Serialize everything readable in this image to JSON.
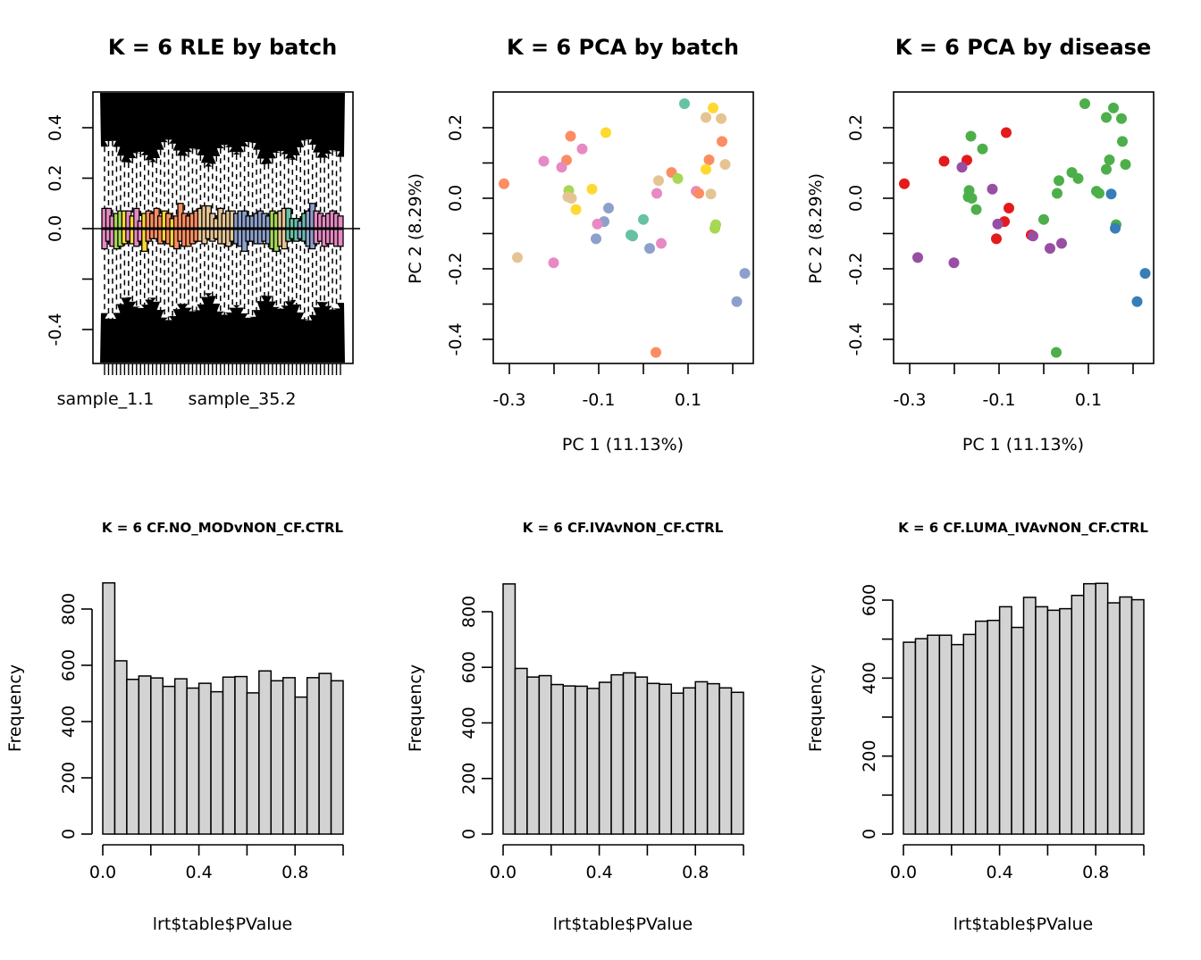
{
  "chart_data": [
    {
      "id": "rle",
      "type": "boxplot",
      "title": "K = 6 RLE by batch",
      "xlabel": "",
      "ylabel": "",
      "ylim": [
        -0.53,
        0.53
      ],
      "yticks": [
        -0.4,
        -0.2,
        0.0,
        0.2,
        0.4
      ],
      "ytick_labels": [
        "-0.4",
        "",
        "0.0",
        "0.2",
        "0.4"
      ],
      "xtick_labels": [
        "sample_1.1",
        "sample_35.2"
      ],
      "n_samples": 60,
      "reference_line": 0,
      "batch_colors": [
        "#E78AC3",
        "#A6D854",
        "#FFD92F",
        "#E78AC3",
        "#FC8D62",
        "#FFD92F",
        "#FC8D62",
        "#E5C494",
        "#8DA0CB",
        "#A6D854",
        "#E5C494",
        "#66C2A5",
        "#8DA0CB",
        "#66C2A5",
        "#8DA0CB",
        "#E78AC3"
      ],
      "box_colors": [
        "#E78AC3",
        "#E78AC3",
        "#E78AC3",
        "#A6D854",
        "#A6D854",
        "#FFD92F",
        "#E78AC3",
        "#FFD92F",
        "#E78AC3",
        "#E78AC3",
        "#FFD92F",
        "#FC8D62",
        "#FC8D62",
        "#FC8D62",
        "#FC8D62",
        "#FFD92F",
        "#FC8D62",
        "#FFD92F",
        "#FC8D62",
        "#FC8D62",
        "#FC8D62",
        "#FC8D62",
        "#FC8D62",
        "#FC8D62",
        "#E5C494",
        "#E5C494",
        "#E5C494",
        "#E5C494",
        "#E5C494",
        "#E5C494",
        "#E5C494",
        "#E5C494",
        "#E5C494",
        "#8DA0CB",
        "#8DA0CB",
        "#8DA0CB",
        "#8DA0CB",
        "#8DA0CB",
        "#8DA0CB",
        "#8DA0CB",
        "#8DA0CB",
        "#8DA0CB",
        "#A6D854",
        "#A6D854",
        "#E5C494",
        "#E5C494",
        "#66C2A5",
        "#66C2A5",
        "#66C2A5",
        "#8DA0CB",
        "#66C2A5",
        "#8DA0CB",
        "#8DA0CB",
        "#E78AC3",
        "#E78AC3",
        "#E78AC3",
        "#E78AC3",
        "#E78AC3",
        "#E78AC3",
        "#E78AC3"
      ],
      "box_q3": [
        0.08,
        0.08,
        0.05,
        0.06,
        0.07,
        0.07,
        0.07,
        0.05,
        0.08,
        0.03,
        0.06,
        0.07,
        0.06,
        0.08,
        0.05,
        0.07,
        0.06,
        0.04,
        0.05,
        0.1,
        0.06,
        0.05,
        0.06,
        0.07,
        0.08,
        0.09,
        0.09,
        0.06,
        0.04,
        0.08,
        0.06,
        0.07,
        0.07,
        0.06,
        0.07,
        0.07,
        0.05,
        0.05,
        0.06,
        0.07,
        0.06,
        0.05,
        0.07,
        0.06,
        0.07,
        0.08,
        0.08,
        0.04,
        0.04,
        0.03,
        0.06,
        0.07,
        0.1,
        0.07,
        0.06,
        0.05,
        0.06,
        0.07,
        0.06,
        0.05
      ],
      "box_q1": [
        -0.08,
        -0.05,
        -0.07,
        -0.08,
        -0.07,
        -0.06,
        -0.05,
        -0.06,
        -0.07,
        -0.05,
        -0.09,
        -0.05,
        -0.04,
        -0.04,
        -0.06,
        -0.05,
        -0.06,
        -0.07,
        -0.08,
        -0.05,
        -0.07,
        -0.07,
        -0.06,
        -0.05,
        -0.05,
        -0.06,
        -0.04,
        -0.05,
        -0.04,
        -0.06,
        -0.06,
        -0.07,
        -0.05,
        -0.06,
        -0.07,
        -0.09,
        -0.05,
        -0.05,
        -0.06,
        -0.06,
        -0.05,
        -0.06,
        -0.08,
        -0.09,
        -0.07,
        -0.08,
        -0.05,
        -0.04,
        -0.05,
        -0.04,
        -0.05,
        -0.07,
        -0.08,
        -0.06,
        -0.05,
        -0.07,
        -0.06,
        -0.06,
        -0.07,
        -0.07
      ],
      "whisker_upper": 0.27,
      "whisker_lower": -0.27
    },
    {
      "id": "pca_batch",
      "type": "scatter",
      "title": "K = 6 PCA by batch",
      "xlabel": "PC 1 (11.13%)",
      "ylabel": "PC 2 (8.29%)",
      "xlim": [
        -0.32,
        0.25
      ],
      "ylim": [
        -0.465,
        0.295
      ],
      "xticks": [
        -0.3,
        -0.2,
        -0.1,
        0.0,
        0.1,
        0.2
      ],
      "xtick_labels": [
        "-0.3",
        "",
        "-0.1",
        "",
        "0.1",
        ""
      ],
      "yticks": [
        -0.4,
        -0.3,
        -0.2,
        -0.1,
        0.0,
        0.1,
        0.2
      ],
      "ytick_labels": [
        "-0.4",
        "",
        "-0.2",
        "",
        "0.0",
        "",
        "0.2"
      ],
      "points": [
        {
          "x": 0.092,
          "y": 0.268,
          "color": "#66C2A5"
        },
        {
          "x": 0.156,
          "y": 0.256,
          "color": "#FFD92F"
        },
        {
          "x": 0.14,
          "y": 0.229,
          "color": "#E5C494"
        },
        {
          "x": 0.174,
          "y": 0.226,
          "color": "#E5C494"
        },
        {
          "x": -0.163,
          "y": 0.176,
          "color": "#FC8D62"
        },
        {
          "x": -0.084,
          "y": 0.186,
          "color": "#FFD92F"
        },
        {
          "x": -0.137,
          "y": 0.14,
          "color": "#E78AC3"
        },
        {
          "x": 0.176,
          "y": 0.161,
          "color": "#FC8D62"
        },
        {
          "x": -0.223,
          "y": 0.105,
          "color": "#E78AC3"
        },
        {
          "x": -0.172,
          "y": 0.108,
          "color": "#FC8D62"
        },
        {
          "x": -0.183,
          "y": 0.088,
          "color": "#E78AC3"
        },
        {
          "x": 0.147,
          "y": 0.109,
          "color": "#FC8D62"
        },
        {
          "x": 0.183,
          "y": 0.096,
          "color": "#E5C494"
        },
        {
          "x": 0.14,
          "y": 0.082,
          "color": "#FFD92F"
        },
        {
          "x": 0.063,
          "y": 0.073,
          "color": "#FC8D62"
        },
        {
          "x": 0.077,
          "y": 0.056,
          "color": "#A6D854"
        },
        {
          "x": 0.034,
          "y": 0.05,
          "color": "#E5C494"
        },
        {
          "x": -0.312,
          "y": 0.041,
          "color": "#FC8D62"
        },
        {
          "x": -0.167,
          "y": 0.022,
          "color": "#A6D854"
        },
        {
          "x": -0.115,
          "y": 0.026,
          "color": "#FFD92F"
        },
        {
          "x": 0.03,
          "y": 0.014,
          "color": "#E78AC3"
        },
        {
          "x": 0.118,
          "y": 0.02,
          "color": "#E78AC3"
        },
        {
          "x": 0.124,
          "y": 0.014,
          "color": "#FC8D62"
        },
        {
          "x": 0.151,
          "y": 0.012,
          "color": "#E5C494"
        },
        {
          "x": -0.169,
          "y": 0.004,
          "color": "#E5C494"
        },
        {
          "x": -0.161,
          "y": 0.0,
          "color": "#E5C494"
        },
        {
          "x": -0.151,
          "y": -0.032,
          "color": "#FFD92F"
        },
        {
          "x": -0.078,
          "y": -0.028,
          "color": "#8DA0CB"
        },
        {
          "x": -0.088,
          "y": -0.066,
          "color": "#8DA0CB"
        },
        {
          "x": -0.103,
          "y": -0.073,
          "color": "#E78AC3"
        },
        {
          "x": 0.0,
          "y": -0.06,
          "color": "#66C2A5"
        },
        {
          "x": -0.028,
          "y": -0.104,
          "color": "#66C2A5"
        },
        {
          "x": -0.024,
          "y": -0.107,
          "color": "#66C2A5"
        },
        {
          "x": -0.106,
          "y": -0.115,
          "color": "#8DA0CB"
        },
        {
          "x": 0.04,
          "y": -0.128,
          "color": "#E78AC3"
        },
        {
          "x": 0.014,
          "y": -0.142,
          "color": "#8DA0CB"
        },
        {
          "x": 0.162,
          "y": -0.075,
          "color": "#A6D854"
        },
        {
          "x": 0.16,
          "y": -0.085,
          "color": "#A6D854"
        },
        {
          "x": -0.282,
          "y": -0.168,
          "color": "#E5C494"
        },
        {
          "x": -0.201,
          "y": -0.183,
          "color": "#E78AC3"
        },
        {
          "x": 0.227,
          "y": -0.213,
          "color": "#8DA0CB"
        },
        {
          "x": 0.209,
          "y": -0.293,
          "color": "#8DA0CB"
        },
        {
          "x": 0.028,
          "y": -0.437,
          "color": "#FC8D62"
        }
      ]
    },
    {
      "id": "pca_disease",
      "type": "scatter",
      "title": "K = 6 PCA by disease",
      "xlabel": "PC 1 (11.13%)",
      "ylabel": "PC 2 (8.29%)",
      "xlim": [
        -0.32,
        0.25
      ],
      "ylim": [
        -0.465,
        0.295
      ],
      "xticks": [
        -0.3,
        -0.2,
        -0.1,
        0.0,
        0.1,
        0.2
      ],
      "xtick_labels": [
        "-0.3",
        "",
        "-0.1",
        "",
        "0.1",
        ""
      ],
      "yticks": [
        -0.4,
        -0.3,
        -0.2,
        -0.1,
        0.0,
        0.1,
        0.2
      ],
      "ytick_labels": [
        "-0.4",
        "",
        "-0.2",
        "",
        "0.0",
        "",
        "0.2"
      ],
      "legend": [],
      "disease_colors": {
        "red": "#E41A1C",
        "green": "#4DAF4A",
        "purple": "#984EA3",
        "blue": "#377EB8"
      },
      "points": [
        {
          "x": 0.092,
          "y": 0.268,
          "color": "#4DAF4A"
        },
        {
          "x": 0.156,
          "y": 0.256,
          "color": "#4DAF4A"
        },
        {
          "x": 0.14,
          "y": 0.229,
          "color": "#4DAF4A"
        },
        {
          "x": 0.174,
          "y": 0.226,
          "color": "#4DAF4A"
        },
        {
          "x": -0.163,
          "y": 0.176,
          "color": "#4DAF4A"
        },
        {
          "x": -0.084,
          "y": 0.186,
          "color": "#E41A1C"
        },
        {
          "x": -0.137,
          "y": 0.14,
          "color": "#4DAF4A"
        },
        {
          "x": 0.176,
          "y": 0.161,
          "color": "#4DAF4A"
        },
        {
          "x": -0.223,
          "y": 0.105,
          "color": "#E41A1C"
        },
        {
          "x": -0.172,
          "y": 0.108,
          "color": "#E41A1C"
        },
        {
          "x": -0.183,
          "y": 0.088,
          "color": "#984EA3"
        },
        {
          "x": 0.147,
          "y": 0.109,
          "color": "#4DAF4A"
        },
        {
          "x": 0.183,
          "y": 0.096,
          "color": "#4DAF4A"
        },
        {
          "x": 0.14,
          "y": 0.082,
          "color": "#4DAF4A"
        },
        {
          "x": 0.063,
          "y": 0.073,
          "color": "#4DAF4A"
        },
        {
          "x": 0.077,
          "y": 0.056,
          "color": "#4DAF4A"
        },
        {
          "x": 0.034,
          "y": 0.05,
          "color": "#4DAF4A"
        },
        {
          "x": -0.312,
          "y": 0.041,
          "color": "#E41A1C"
        },
        {
          "x": -0.167,
          "y": 0.022,
          "color": "#4DAF4A"
        },
        {
          "x": -0.115,
          "y": 0.026,
          "color": "#984EA3"
        },
        {
          "x": 0.03,
          "y": 0.014,
          "color": "#4DAF4A"
        },
        {
          "x": 0.118,
          "y": 0.02,
          "color": "#4DAF4A"
        },
        {
          "x": 0.124,
          "y": 0.014,
          "color": "#4DAF4A"
        },
        {
          "x": 0.151,
          "y": 0.012,
          "color": "#377EB8"
        },
        {
          "x": -0.169,
          "y": 0.004,
          "color": "#4DAF4A"
        },
        {
          "x": -0.161,
          "y": 0.0,
          "color": "#4DAF4A"
        },
        {
          "x": -0.151,
          "y": -0.032,
          "color": "#4DAF4A"
        },
        {
          "x": -0.078,
          "y": -0.028,
          "color": "#E41A1C"
        },
        {
          "x": -0.088,
          "y": -0.066,
          "color": "#E41A1C"
        },
        {
          "x": -0.103,
          "y": -0.073,
          "color": "#984EA3"
        },
        {
          "x": 0.0,
          "y": -0.06,
          "color": "#4DAF4A"
        },
        {
          "x": -0.028,
          "y": -0.104,
          "color": "#E41A1C"
        },
        {
          "x": -0.024,
          "y": -0.107,
          "color": "#984EA3"
        },
        {
          "x": -0.106,
          "y": -0.115,
          "color": "#E41A1C"
        },
        {
          "x": 0.04,
          "y": -0.128,
          "color": "#984EA3"
        },
        {
          "x": 0.014,
          "y": -0.142,
          "color": "#984EA3"
        },
        {
          "x": 0.162,
          "y": -0.075,
          "color": "#4DAF4A"
        },
        {
          "x": 0.16,
          "y": -0.085,
          "color": "#377EB8"
        },
        {
          "x": -0.282,
          "y": -0.168,
          "color": "#984EA3"
        },
        {
          "x": -0.201,
          "y": -0.183,
          "color": "#984EA3"
        },
        {
          "x": 0.227,
          "y": -0.213,
          "color": "#377EB8"
        },
        {
          "x": 0.209,
          "y": -0.293,
          "color": "#377EB8"
        },
        {
          "x": 0.028,
          "y": -0.437,
          "color": "#4DAF4A"
        }
      ]
    },
    {
      "id": "hist1",
      "type": "bar",
      "title": "K = 6 CF.NO_MODvNON_CF.CTRL",
      "xlabel": "lrt$table$PValue",
      "ylabel": "Frequency",
      "xlim": [
        0,
        1
      ],
      "ylim": [
        0,
        900
      ],
      "bin_width": 0.05,
      "xticks": [
        0,
        0.2,
        0.4,
        0.6,
        0.8,
        1.0
      ],
      "xtick_labels": [
        "0.0",
        "",
        "0.4",
        "",
        "0.8",
        ""
      ],
      "yticks": [
        0,
        200,
        400,
        600,
        800
      ],
      "ytick_labels": [
        "0",
        "200",
        "400",
        "600",
        "800"
      ],
      "values": [
        893,
        616,
        550,
        562,
        555,
        525,
        552,
        519,
        536,
        506,
        558,
        560,
        502,
        580,
        545,
        556,
        487,
        556,
        571,
        545
      ]
    },
    {
      "id": "hist2",
      "type": "bar",
      "title": "K = 6 CF.IVAvNON_CF.CTRL",
      "xlabel": "lrt$table$PValue",
      "ylabel": "Frequency",
      "xlim": [
        0,
        1
      ],
      "ylim": [
        0,
        900
      ],
      "bin_width": 0.05,
      "xticks": [
        0,
        0.2,
        0.4,
        0.6,
        0.8,
        1.0
      ],
      "xtick_labels": [
        "0.0",
        "",
        "0.4",
        "",
        "0.8",
        ""
      ],
      "yticks": [
        0,
        200,
        400,
        600,
        800
      ],
      "ytick_labels": [
        "0",
        "200",
        "400",
        "600",
        "800"
      ],
      "values": [
        900,
        596,
        565,
        570,
        538,
        533,
        532,
        524,
        546,
        573,
        580,
        565,
        542,
        539,
        507,
        526,
        548,
        541,
        526,
        510
      ]
    },
    {
      "id": "hist3",
      "type": "bar",
      "title": "K = 6 CF.LUMA_IVAvNON_CF.CTRL",
      "xlabel": "lrt$table$PValue",
      "ylabel": "Frequency",
      "xlim": [
        0,
        1
      ],
      "ylim": [
        0,
        650
      ],
      "bin_width": 0.05,
      "xticks": [
        0,
        0.2,
        0.4,
        0.6,
        0.8,
        1.0
      ],
      "xtick_labels": [
        "0.0",
        "",
        "0.4",
        "",
        "0.8",
        ""
      ],
      "yticks": [
        0,
        100,
        200,
        300,
        400,
        500,
        600
      ],
      "ytick_labels": [
        "0",
        "",
        "200",
        "",
        "400",
        "",
        "600"
      ],
      "values": [
        492,
        501,
        510,
        510,
        486,
        512,
        546,
        548,
        583,
        530,
        607,
        583,
        574,
        578,
        612,
        642,
        643,
        593,
        608,
        601
      ]
    }
  ]
}
